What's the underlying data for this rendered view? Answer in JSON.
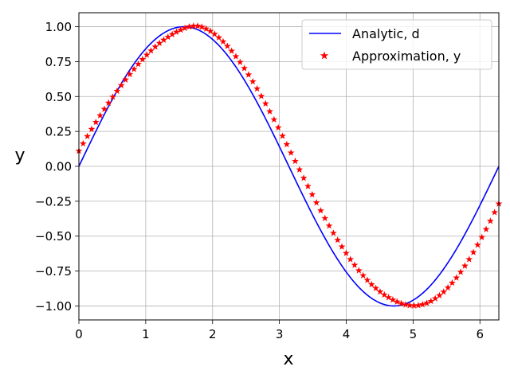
{
  "chart_data": {
    "type": "line",
    "title": "",
    "xlabel": "x",
    "ylabel": "y",
    "xlim": [
      0,
      6.2832
    ],
    "ylim": [
      -1.1,
      1.1
    ],
    "xticks": [
      0,
      1,
      2,
      3,
      4,
      5,
      6
    ],
    "xtick_labels": [
      "0",
      "1",
      "2",
      "3",
      "4",
      "5",
      "6"
    ],
    "yticks": [
      -1.0,
      -0.75,
      -0.5,
      -0.25,
      0.0,
      0.25,
      0.5,
      0.75,
      1.0
    ],
    "ytick_labels": [
      "−1.00",
      "−0.75",
      "−0.50",
      "−0.25",
      "0.00",
      "0.25",
      "0.50",
      "0.75",
      "1.00"
    ],
    "grid": true,
    "legend_position": "top-right",
    "series": [
      {
        "name": "Analytic, d",
        "kind": "line",
        "color": "#0000ff",
        "function": "sin(x)",
        "x": [
          0,
          0.3142,
          0.6283,
          0.9425,
          1.2566,
          1.5708,
          1.885,
          2.1991,
          2.5133,
          2.8274,
          3.1416,
          3.4558,
          3.7699,
          4.0841,
          4.3982,
          4.7124,
          5.0265,
          5.3407,
          5.6549,
          5.969,
          6.2832
        ],
        "y": [
          0,
          0.309,
          0.5878,
          0.809,
          0.9511,
          1.0,
          0.9511,
          0.809,
          0.5878,
          0.309,
          0,
          -0.309,
          -0.5878,
          -0.809,
          -0.9511,
          -1.0,
          -0.9511,
          -0.809,
          -0.5878,
          -0.309,
          0
        ]
      },
      {
        "name": "Approximation, y",
        "kind": "scatter",
        "marker": "star",
        "color": "#ff0000",
        "x": [
          0.0,
          0.0635,
          0.1269,
          0.1904,
          0.2539,
          0.3173,
          0.3808,
          0.4443,
          0.5077,
          0.5712,
          0.6347,
          0.6981,
          0.7616,
          0.8251,
          0.8885,
          0.952,
          1.0155,
          1.0789,
          1.1424,
          1.2059,
          1.2693,
          1.3328,
          1.3963,
          1.4597,
          1.5232,
          1.5867,
          1.6501,
          1.7136,
          1.7771,
          1.8405,
          1.904,
          1.9675,
          2.0309,
          2.0944,
          2.1579,
          2.2213,
          2.2848,
          2.3483,
          2.4117,
          2.4752,
          2.5387,
          2.6021,
          2.6656,
          2.7291,
          2.7925,
          2.856,
          2.9195,
          2.9829,
          3.0464,
          3.1099,
          3.1733,
          3.2368,
          3.3003,
          3.3637,
          3.4272,
          3.4907,
          3.5541,
          3.6176,
          3.6811,
          3.7445,
          3.808,
          3.8715,
          3.9349,
          3.9984,
          4.0619,
          4.1253,
          4.1888,
          4.2523,
          4.3157,
          4.3792,
          4.4427,
          4.5061,
          4.5696,
          4.6331,
          4.6965,
          4.76,
          4.8235,
          4.8869,
          4.9504,
          5.0139,
          5.0773,
          5.1408,
          5.2043,
          5.2677,
          5.3312,
          5.3947,
          5.4581,
          5.5216,
          5.5851,
          5.6485,
          5.712,
          5.7755,
          5.8389,
          5.9024,
          5.9659,
          6.0293,
          6.0928,
          6.1563,
          6.2197,
          6.2832
        ],
        "y": [
          0.11,
          0.163,
          0.215,
          0.266,
          0.316,
          0.364,
          0.41,
          0.454,
          0.497,
          0.539,
          0.58,
          0.62,
          0.659,
          0.696,
          0.732,
          0.766,
          0.798,
          0.828,
          0.856,
          0.882,
          0.905,
          0.926,
          0.945,
          0.962,
          0.977,
          0.99,
          1.0,
          1.005,
          1.005,
          0.998,
          0.985,
          0.968,
          0.947,
          0.922,
          0.893,
          0.861,
          0.826,
          0.787,
          0.746,
          0.702,
          0.656,
          0.607,
          0.556,
          0.503,
          0.449,
          0.393,
          0.335,
          0.277,
          0.217,
          0.157,
          0.097,
          0.037,
          -0.024,
          -0.084,
          -0.143,
          -0.202,
          -0.26,
          -0.317,
          -0.372,
          -0.426,
          -0.478,
          -0.528,
          -0.576,
          -0.622,
          -0.666,
          -0.707,
          -0.746,
          -0.782,
          -0.815,
          -0.846,
          -0.873,
          -0.898,
          -0.92,
          -0.939,
          -0.956,
          -0.97,
          -0.982,
          -0.991,
          -0.996,
          -0.998,
          -0.996,
          -0.99,
          -0.98,
          -0.966,
          -0.947,
          -0.925,
          -0.899,
          -0.869,
          -0.835,
          -0.798,
          -0.757,
          -0.713,
          -0.666,
          -0.616,
          -0.563,
          -0.508,
          -0.451,
          -0.392,
          -0.33,
          -0.268
        ]
      }
    ]
  }
}
